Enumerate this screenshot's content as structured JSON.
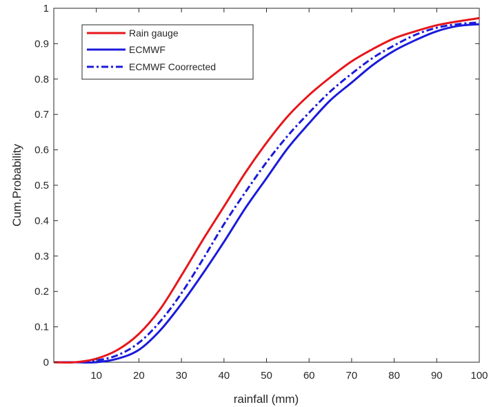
{
  "chart_data": {
    "type": "line",
    "xlabel": "rainfall (mm)",
    "ylabel": "Cum.Probability",
    "xlim": [
      0,
      100
    ],
    "ylim": [
      0,
      1
    ],
    "xticks": [
      10,
      20,
      30,
      40,
      50,
      60,
      70,
      80,
      90,
      100
    ],
    "yticks": [
      0,
      0.1,
      0.2,
      0.3,
      0.4,
      0.5,
      0.6,
      0.7,
      0.8,
      0.9,
      1
    ],
    "ytick_labels": [
      "0",
      "0.1",
      "0.2",
      "0.3",
      "0.4",
      "0.5",
      "0.6",
      "0.7",
      "0.8",
      "0.9",
      "1"
    ],
    "grid": false,
    "legend_position": "top-left",
    "x": [
      0,
      5,
      10,
      15,
      20,
      25,
      30,
      35,
      40,
      45,
      50,
      55,
      60,
      65,
      70,
      75,
      80,
      85,
      90,
      95,
      100
    ],
    "series": [
      {
        "name": "Rain gauge",
        "color": "#e6161a",
        "style": "solid",
        "values": [
          0,
          0,
          0.01,
          0.035,
          0.08,
          0.15,
          0.245,
          0.345,
          0.44,
          0.535,
          0.62,
          0.695,
          0.755,
          0.805,
          0.85,
          0.885,
          0.915,
          0.935,
          0.952,
          0.963,
          0.972
        ]
      },
      {
        "name": "ECMWF",
        "color": "#1a1adb",
        "style": "solid",
        "values": [
          0,
          0,
          0,
          0.01,
          0.035,
          0.09,
          0.165,
          0.25,
          0.34,
          0.435,
          0.52,
          0.605,
          0.675,
          0.74,
          0.79,
          0.84,
          0.88,
          0.91,
          0.935,
          0.95,
          0.955
        ]
      },
      {
        "name": "ECMWF Coorrected",
        "color": "#1a1adb",
        "style": "dashdot",
        "values": [
          0,
          0,
          0.005,
          0.02,
          0.055,
          0.115,
          0.195,
          0.29,
          0.39,
          0.48,
          0.565,
          0.64,
          0.705,
          0.765,
          0.815,
          0.86,
          0.895,
          0.925,
          0.945,
          0.955,
          0.96
        ]
      }
    ]
  }
}
